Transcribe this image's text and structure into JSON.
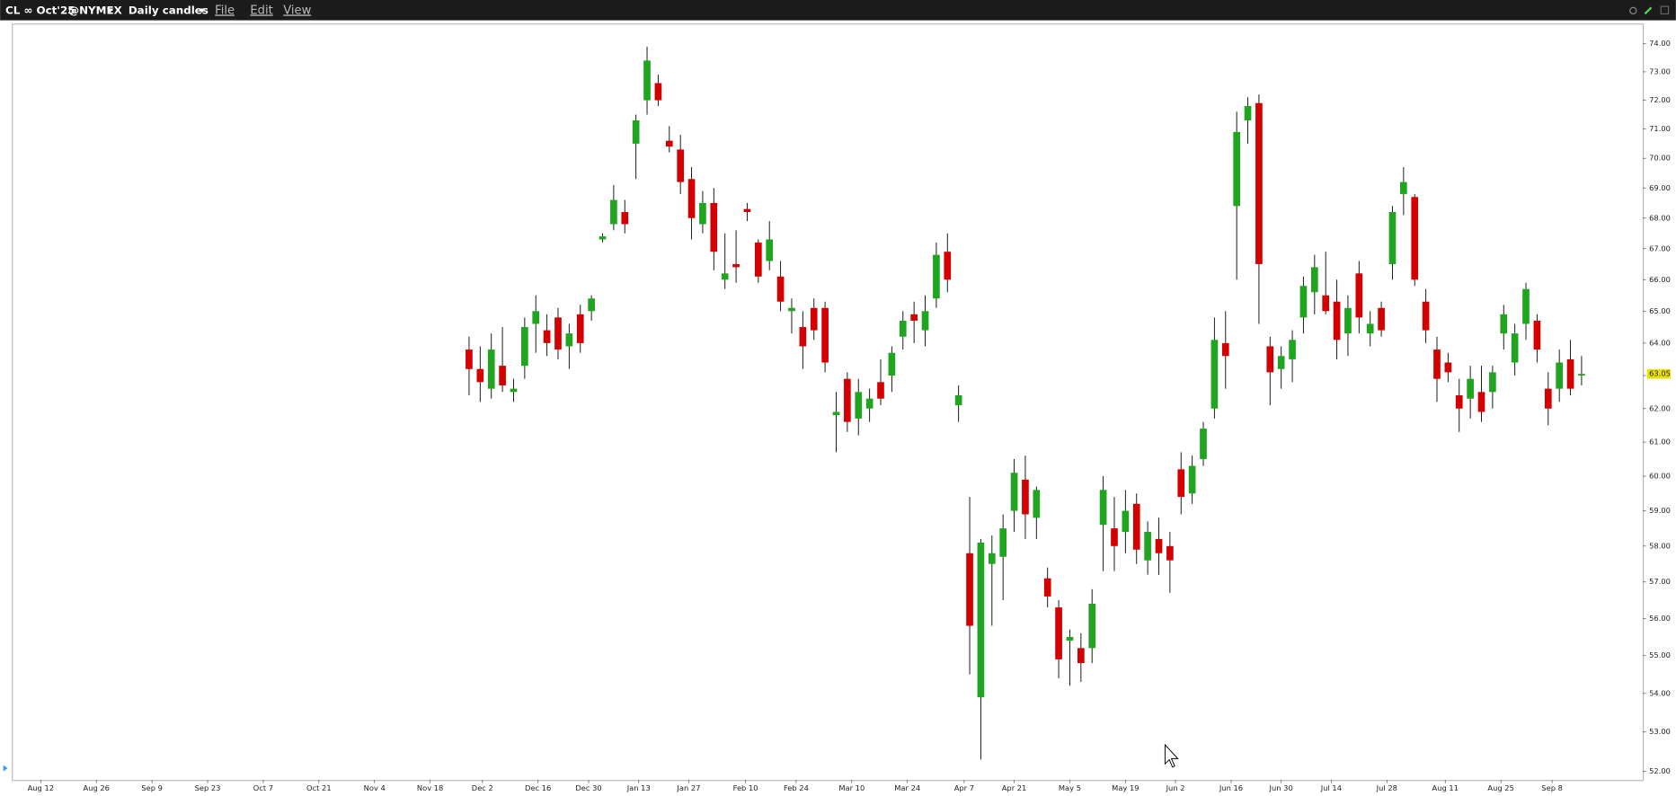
{
  "header": {
    "symbol": "CL ∞ Oct'25",
    "exchange": "@NYMEX",
    "interval": "Daily candles",
    "menu": [
      "File",
      "Edit",
      "View"
    ]
  },
  "chart_data": {
    "type": "candlestick",
    "log_scale": true,
    "up_color": "#1fa51f",
    "down_color": "#d40000",
    "xlim": [
      -5,
      288
    ],
    "ylim": [
      51.78,
      74.73
    ],
    "xticks": [
      {
        "value": 0,
        "label": "Aug 12"
      },
      {
        "value": 10,
        "label": "Aug 26"
      },
      {
        "value": 20,
        "label": "Sep 9"
      },
      {
        "value": 30,
        "label": "Sep 23"
      },
      {
        "value": 40,
        "label": "Oct 7"
      },
      {
        "value": 50,
        "label": "Oct 21"
      },
      {
        "value": 60,
        "label": "Nov 4"
      },
      {
        "value": 70,
        "label": "Nov 18"
      },
      {
        "value": 79.4,
        "label": "Dec 2"
      },
      {
        "value": 89.4,
        "label": "Dec 16"
      },
      {
        "value": 98.5,
        "label": "Dec 30"
      },
      {
        "value": 107.5,
        "label": "Jan 13"
      },
      {
        "value": 116.5,
        "label": "Jan 27"
      },
      {
        "value": 126.7,
        "label": "Feb 10"
      },
      {
        "value": 135.8,
        "label": "Feb 24"
      },
      {
        "value": 145.8,
        "label": "Mar 10"
      },
      {
        "value": 155.8,
        "label": "Mar 24"
      },
      {
        "value": 166,
        "label": "Apr 7"
      },
      {
        "value": 175,
        "label": "Apr 21"
      },
      {
        "value": 185,
        "label": "May 5"
      },
      {
        "value": 195,
        "label": "May 19"
      },
      {
        "value": 204,
        "label": "Jun 2"
      },
      {
        "value": 214,
        "label": "Jun 16"
      },
      {
        "value": 223,
        "label": "Jun 30"
      },
      {
        "value": 232,
        "label": "Jul 14"
      },
      {
        "value": 242,
        "label": "Jul 28"
      },
      {
        "value": 252.5,
        "label": "Aug 11"
      },
      {
        "value": 262.5,
        "label": "Aug 25"
      },
      {
        "value": 271.7,
        "label": "Sep 8"
      }
    ],
    "yticks": [
      {
        "value": 52,
        "label": "52.00"
      },
      {
        "value": 53,
        "label": "53.00"
      },
      {
        "value": 54,
        "label": "54.00"
      },
      {
        "value": 55,
        "label": "55.00"
      },
      {
        "value": 56,
        "label": "56.00"
      },
      {
        "value": 57,
        "label": "57.00"
      },
      {
        "value": 58,
        "label": "58.00"
      },
      {
        "value": 59,
        "label": "59.00"
      },
      {
        "value": 60,
        "label": "60.00"
      },
      {
        "value": 61,
        "label": "61.00"
      },
      {
        "value": 62,
        "label": "62.00"
      },
      {
        "value": 63,
        "label": "63.00"
      },
      {
        "value": 64,
        "label": "64.00"
      },
      {
        "value": 65,
        "label": "65.00"
      },
      {
        "value": 66,
        "label": "66.00"
      },
      {
        "value": 67,
        "label": "67.00"
      },
      {
        "value": 68,
        "label": "68.00"
      },
      {
        "value": 69,
        "label": "69.00"
      },
      {
        "value": 70,
        "label": "70.00"
      },
      {
        "value": 71,
        "label": "71.00"
      },
      {
        "value": 72,
        "label": "72.00"
      },
      {
        "value": 73,
        "label": "73.00"
      },
      {
        "value": 74,
        "label": "74.00"
      }
    ],
    "last_price": {
      "value": 63.05,
      "label": "63.05"
    },
    "x": [
      77,
      79,
      81,
      83,
      85,
      87,
      89,
      91,
      93,
      95,
      97,
      99,
      101,
      103,
      105,
      107,
      109,
      111,
      113,
      115,
      117,
      119,
      121,
      123,
      125,
      127,
      129,
      131,
      133,
      135,
      137,
      139,
      141,
      143,
      145,
      147,
      149,
      151,
      153,
      155,
      157,
      159,
      161,
      163,
      165,
      167,
      169,
      171,
      173,
      175,
      177,
      179,
      181,
      183,
      185,
      187,
      189,
      191,
      193,
      195,
      197,
      199,
      201,
      203,
      205,
      207,
      209,
      211,
      213,
      215,
      217,
      219,
      221,
      223,
      225,
      227,
      229,
      231,
      233,
      235,
      237,
      239,
      241,
      243,
      245,
      247,
      249,
      251,
      253,
      255,
      257,
      259,
      261,
      263,
      265,
      267,
      269,
      271,
      273,
      275,
      277
    ],
    "open": [
      63.8,
      63.2,
      62.6,
      63.3,
      62.5,
      63.3,
      64.6,
      64.4,
      64.8,
      63.9,
      64.9,
      65.0,
      67.3,
      67.8,
      68.2,
      70.5,
      72.0,
      72.6,
      70.6,
      70.3,
      69.3,
      67.8,
      68.5,
      66.0,
      66.5,
      68.3,
      67.2,
      66.6,
      66.1,
      65.0,
      64.5,
      65.1,
      65.1,
      61.8,
      62.9,
      61.7,
      62.0,
      62.8,
      63.0,
      64.2,
      64.9,
      64.4,
      65.4,
      66.9,
      62.1,
      57.8,
      53.9,
      57.5,
      57.7,
      59.0,
      59.9,
      58.8,
      57.1,
      56.3,
      55.4,
      55.2,
      55.2,
      58.6,
      58.5,
      58.4,
      59.2,
      57.6,
      58.2,
      58.0,
      60.2,
      59.5,
      60.5,
      62.0,
      64.0,
      68.4,
      71.3,
      71.9,
      63.9,
      63.2,
      63.5,
      64.8,
      65.6,
      65.5,
      65.3,
      64.3,
      66.2,
      64.3,
      65.1,
      66.5,
      68.8,
      68.7,
      65.3,
      63.8,
      63.4,
      62.4,
      62.3,
      62.5,
      62.5,
      64.3,
      63.4,
      64.6,
      64.7,
      62.6,
      62.6,
      63.5,
      63.0
    ],
    "high": [
      64.2,
      63.9,
      64.3,
      64.5,
      62.9,
      64.8,
      65.5,
      64.9,
      65.1,
      64.6,
      65.2,
      65.5,
      67.5,
      69.1,
      68.6,
      71.5,
      73.9,
      72.9,
      71.1,
      70.8,
      69.7,
      68.9,
      69.0,
      67.5,
      67.6,
      68.5,
      67.3,
      67.9,
      66.6,
      65.4,
      65.0,
      65.4,
      65.3,
      62.5,
      63.1,
      62.9,
      62.6,
      63.5,
      63.9,
      65.0,
      65.3,
      65.5,
      67.2,
      67.5,
      62.7,
      59.4,
      58.2,
      58.3,
      58.9,
      60.5,
      60.6,
      59.7,
      57.4,
      56.5,
      55.7,
      55.6,
      56.8,
      60.0,
      59.4,
      59.6,
      59.5,
      58.7,
      58.8,
      58.4,
      60.7,
      60.6,
      61.6,
      64.8,
      65.0,
      71.6,
      72.1,
      72.2,
      64.2,
      63.9,
      64.4,
      66.1,
      66.8,
      66.9,
      66.0,
      65.5,
      66.6,
      65.0,
      65.3,
      68.4,
      69.7,
      68.8,
      65.7,
      64.2,
      63.7,
      62.9,
      63.3,
      63.3,
      63.3,
      65.2,
      64.6,
      65.9,
      64.9,
      63.1,
      63.8,
      64.1,
      63.6
    ],
    "low": [
      62.4,
      62.2,
      62.3,
      62.5,
      62.2,
      62.9,
      63.7,
      63.6,
      63.5,
      63.2,
      63.7,
      64.7,
      67.2,
      67.6,
      67.5,
      69.3,
      71.5,
      71.8,
      70.2,
      68.8,
      67.3,
      67.5,
      66.3,
      65.7,
      65.9,
      67.9,
      65.9,
      66.3,
      65.0,
      64.3,
      63.2,
      64.1,
      63.1,
      60.7,
      61.3,
      61.2,
      61.6,
      62.1,
      62.5,
      63.8,
      64.0,
      63.9,
      65.1,
      65.6,
      61.6,
      54.5,
      52.3,
      55.8,
      56.5,
      58.4,
      58.2,
      58.2,
      56.3,
      54.4,
      54.2,
      54.3,
      54.8,
      57.3,
      57.3,
      57.8,
      57.5,
      57.2,
      57.2,
      56.7,
      58.9,
      59.2,
      60.3,
      61.7,
      62.6,
      66.0,
      70.5,
      64.6,
      62.1,
      62.6,
      62.8,
      64.3,
      64.9,
      64.9,
      63.5,
      63.6,
      64.3,
      63.9,
      64.2,
      66.0,
      68.1,
      65.8,
      64.0,
      62.2,
      62.8,
      61.3,
      61.7,
      61.6,
      62.0,
      63.8,
      63.0,
      64.1,
      63.4,
      61.5,
      62.2,
      62.4,
      62.7
    ],
    "close": [
      63.2,
      62.8,
      63.8,
      62.7,
      62.6,
      64.5,
      65.0,
      64.0,
      63.8,
      64.3,
      64.0,
      65.4,
      67.4,
      68.6,
      67.8,
      71.3,
      73.4,
      72.0,
      70.4,
      69.2,
      68.0,
      68.5,
      66.9,
      66.2,
      66.4,
      68.2,
      66.1,
      67.3,
      65.3,
      65.1,
      63.9,
      64.4,
      63.4,
      61.9,
      61.6,
      62.5,
      62.3,
      62.3,
      63.7,
      64.7,
      64.7,
      65.0,
      66.8,
      66.0,
      62.4,
      55.8,
      58.1,
      57.8,
      58.5,
      60.1,
      58.9,
      59.6,
      56.6,
      54.9,
      55.5,
      54.8,
      56.4,
      59.6,
      58.0,
      59.0,
      57.9,
      58.4,
      57.8,
      57.6,
      59.4,
      60.3,
      61.4,
      64.1,
      63.6,
      70.9,
      71.8,
      66.5,
      63.1,
      63.6,
      64.1,
      65.8,
      66.4,
      65.0,
      64.1,
      65.1,
      64.8,
      64.6,
      64.4,
      68.2,
      69.2,
      66.0,
      64.4,
      62.9,
      63.1,
      62.0,
      62.9,
      61.9,
      63.1,
      64.9,
      64.3,
      65.7,
      63.8,
      62.0,
      63.4,
      62.6,
      63.05
    ]
  }
}
